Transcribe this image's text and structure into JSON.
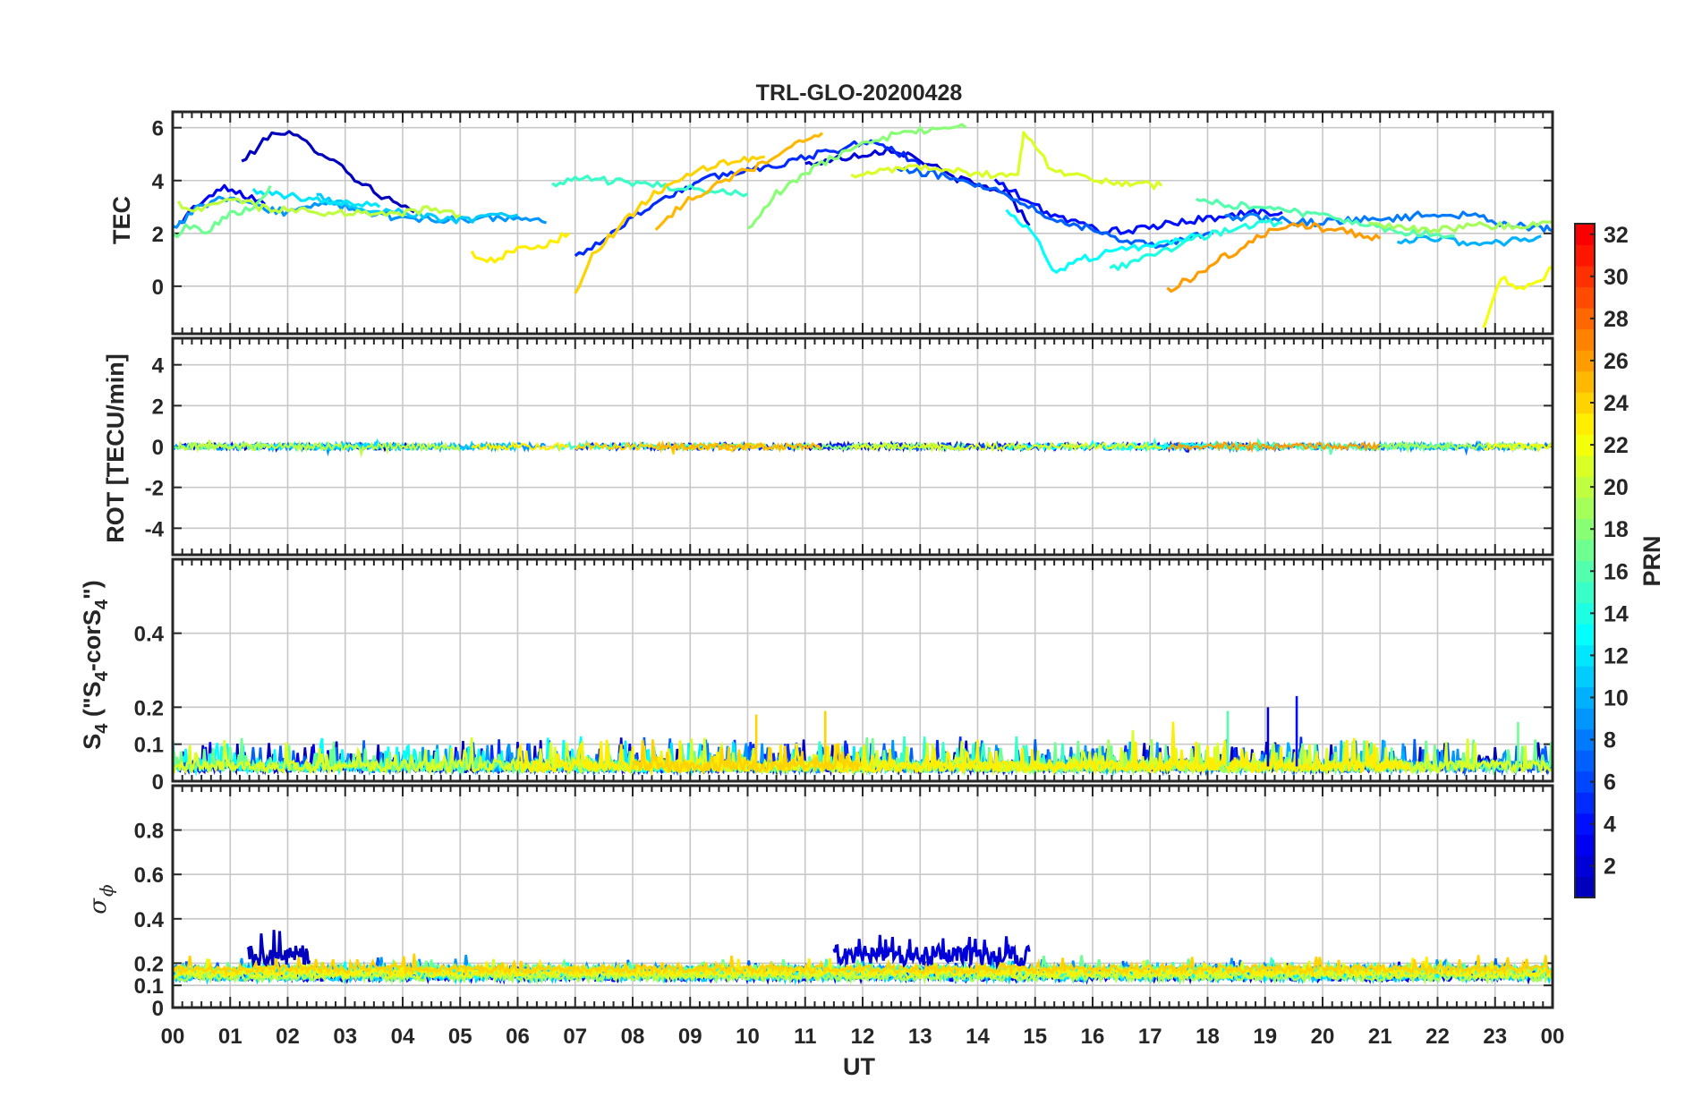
{
  "chart_data": [
    {
      "id": "tec",
      "type": "line",
      "title": "TRL-GLO-20200428",
      "ylabel": "TEC",
      "ylim": [
        -1.8,
        6.6
      ],
      "yticks": [
        0,
        2,
        4,
        6
      ],
      "series": [
        {
          "name": "PRN 1",
          "prn": 1,
          "x": [
            1.2,
            1.5,
            1.8,
            2.1,
            2.4,
            2.8,
            3.1,
            3.5,
            3.9,
            4.2
          ],
          "values": [
            4.7,
            5.3,
            5.9,
            5.7,
            5.3,
            4.8,
            4.2,
            3.6,
            3.1,
            2.8
          ]
        },
        {
          "name": "PRN 2",
          "prn": 2,
          "x": [
            11.0,
            11.5,
            12.0,
            12.5,
            13.0,
            13.5,
            14.0,
            14.5,
            14.9
          ],
          "values": [
            4.6,
            4.8,
            5.0,
            5.2,
            4.8,
            4.2,
            3.8,
            3.6,
            2.3
          ]
        },
        {
          "name": "PRN 3",
          "prn": 3,
          "x": [
            0.1,
            0.5,
            0.9,
            1.3,
            1.6
          ],
          "values": [
            2.4,
            3.2,
            3.7,
            3.4,
            3.1
          ]
        },
        {
          "name": "PRN 4",
          "prn": 4,
          "x": [
            14.3,
            14.8,
            15.2,
            15.7,
            16.2,
            16.7,
            17.2,
            17.7,
            18.2,
            18.8,
            19.3
          ],
          "values": [
            4.0,
            3.3,
            2.8,
            2.4,
            2.1,
            2.1,
            2.3,
            2.5,
            2.6,
            2.8,
            2.8
          ]
        },
        {
          "name": "PRN 5",
          "prn": 5,
          "x": [
            7.0,
            7.5,
            8.0,
            8.5,
            9.0,
            9.5,
            10.0,
            10.5,
            11.0,
            11.5,
            12.0,
            12.5,
            13.0
          ],
          "values": [
            1.1,
            1.8,
            2.6,
            3.3,
            3.8,
            4.2,
            4.4,
            4.6,
            4.9,
            5.1,
            5.5,
            5.2,
            4.6
          ]
        },
        {
          "name": "PRN 7",
          "prn": 7,
          "x": [
            12.6,
            13.1,
            13.6,
            14.1,
            14.6,
            15.1,
            15.6,
            16.1,
            16.6,
            17.1,
            17.6,
            18.1
          ],
          "values": [
            4.4,
            4.3,
            4.1,
            3.8,
            3.4,
            2.8,
            2.4,
            2.1,
            1.7,
            1.6,
            1.8,
            2.0
          ]
        },
        {
          "name": "PRN 8",
          "prn": 8,
          "x": [
            18.3,
            18.8,
            19.3,
            19.8,
            20.3,
            20.8,
            21.3,
            21.8,
            22.3,
            22.8,
            23.3,
            23.8,
            24.0
          ],
          "values": [
            2.6,
            2.6,
            2.5,
            2.4,
            2.5,
            2.5,
            2.6,
            2.7,
            2.7,
            2.6,
            2.3,
            2.2,
            2.1
          ]
        },
        {
          "name": "PRN 9",
          "prn": 9,
          "x": [
            0.0,
            0.4,
            0.8,
            1.2,
            1.6,
            2.0,
            2.4,
            2.8,
            3.2,
            3.6,
            4.0,
            4.5,
            5.0,
            5.5,
            6.0,
            6.5
          ],
          "values": [
            2.2,
            2.9,
            3.3,
            3.2,
            2.9,
            2.8,
            3.0,
            3.1,
            2.9,
            2.7,
            2.6,
            2.5,
            2.5,
            2.6,
            2.5,
            2.4
          ]
        },
        {
          "name": "PRN 10",
          "prn": 10,
          "x": [
            21.3,
            21.8,
            22.3,
            22.8,
            23.3,
            23.8
          ],
          "values": [
            1.6,
            1.8,
            1.7,
            1.6,
            1.7,
            1.9
          ]
        },
        {
          "name": "PRN 11",
          "prn": 11,
          "x": [
            2.5,
            3.0,
            3.5,
            4.0,
            4.5,
            5.0,
            5.5,
            6.0
          ],
          "values": [
            3.4,
            3.1,
            2.9,
            2.8,
            2.6,
            2.5,
            2.6,
            2.7
          ]
        },
        {
          "name": "PRN 12",
          "prn": 12,
          "x": [
            1.4,
            1.8,
            2.3,
            2.8,
            3.3,
            3.6
          ],
          "values": [
            3.6,
            3.5,
            3.3,
            3.2,
            3.1,
            3.0
          ]
        },
        {
          "name": "PRN 13",
          "prn": 13,
          "x": [
            14.5,
            15.0,
            15.3,
            15.8,
            16.3,
            16.8,
            17.3,
            17.8
          ],
          "values": [
            2.8,
            1.9,
            0.5,
            1.0,
            1.3,
            1.5,
            1.7,
            1.9
          ]
        },
        {
          "name": "PRN 14",
          "prn": 14,
          "x": [
            16.3,
            16.8,
            17.3,
            17.8,
            18.3,
            18.8,
            19.3
          ],
          "values": [
            0.6,
            1.0,
            1.4,
            1.8,
            2.1,
            2.3,
            2.4
          ]
        },
        {
          "name": "PRN 15",
          "prn": 15,
          "x": [
            6.6,
            7.0,
            7.5,
            8.0,
            8.5,
            9.0,
            9.5,
            10.0
          ],
          "values": [
            3.8,
            4.1,
            4.0,
            3.9,
            3.8,
            3.7,
            3.6,
            3.5
          ]
        },
        {
          "name": "PRN 16",
          "prn": 16,
          "x": [
            17.8,
            18.3,
            18.8,
            19.3,
            19.8,
            20.3,
            20.8,
            21.3,
            21.8,
            22.3
          ],
          "values": [
            3.2,
            3.1,
            3.0,
            2.9,
            2.7,
            2.5,
            2.3,
            2.1,
            2.0,
            1.9
          ]
        },
        {
          "name": "PRN 17",
          "prn": 17,
          "x": [
            0.0,
            0.3,
            0.6,
            1.0,
            1.4,
            1.7
          ],
          "values": [
            1.9,
            2.3,
            2.1,
            2.7,
            3.0,
            3.8
          ]
        },
        {
          "name": "PRN 18",
          "prn": 18,
          "x": [
            10.0,
            10.5,
            11.0,
            11.5,
            12.0,
            12.5,
            13.0,
            13.5,
            13.8
          ],
          "values": [
            2.1,
            3.5,
            4.3,
            4.9,
            5.4,
            5.7,
            5.9,
            6.0,
            6.0
          ]
        },
        {
          "name": "PRN 19",
          "prn": 19,
          "x": [
            20.8,
            21.3,
            21.8,
            22.3,
            22.8,
            23.3,
            23.8,
            24.0
          ],
          "values": [
            2.3,
            2.2,
            2.1,
            2.2,
            2.3,
            2.3,
            2.4,
            2.4
          ]
        },
        {
          "name": "PRN 20",
          "prn": 20,
          "x": [
            0.1,
            0.5,
            1.0,
            1.5,
            2.0,
            2.5,
            3.0,
            3.5,
            4.0,
            4.5,
            5.0
          ],
          "values": [
            3.1,
            2.9,
            3.4,
            3.0,
            2.9,
            2.8,
            2.8,
            2.7,
            2.8,
            2.9,
            2.7
          ]
        },
        {
          "name": "PRN 21",
          "prn": 21,
          "x": [
            11.8,
            12.3,
            12.8,
            13.3,
            13.8,
            14.3,
            14.7,
            14.8,
            15.3,
            15.8,
            16.3,
            16.8,
            17.2
          ],
          "values": [
            4.1,
            4.4,
            4.5,
            4.4,
            4.3,
            4.2,
            4.1,
            5.8,
            4.4,
            4.1,
            3.9,
            3.9,
            3.8
          ]
        },
        {
          "name": "PRN 22",
          "prn": 22,
          "x": [
            22.8,
            23.1,
            23.5,
            23.8,
            24.0
          ],
          "values": [
            -1.7,
            0.3,
            -0.2,
            0.3,
            0.7
          ]
        },
        {
          "name": "PRN 23",
          "prn": 23,
          "x": [
            5.2,
            5.6,
            6.0,
            6.5,
            6.9
          ],
          "values": [
            1.2,
            1.0,
            1.4,
            1.6,
            2.0
          ]
        },
        {
          "name": "PRN 24",
          "prn": 24,
          "x": [
            7.0,
            7.3,
            7.8,
            8.3,
            8.8,
            9.3,
            9.8,
            10.3
          ],
          "values": [
            -0.4,
            1.2,
            2.3,
            3.4,
            4.0,
            4.5,
            4.8,
            4.9
          ]
        },
        {
          "name": "PRN 25",
          "prn": 25,
          "x": [
            8.4,
            8.9,
            9.4,
            9.9,
            10.4,
            10.9,
            11.3
          ],
          "values": [
            2.0,
            3.2,
            3.8,
            4.3,
            4.8,
            5.4,
            5.8
          ]
        },
        {
          "name": "PRN 26",
          "prn": 26,
          "x": [
            17.3,
            17.7,
            18.1,
            18.5,
            19.0,
            19.5,
            20.0,
            20.5,
            21.0
          ],
          "values": [
            -0.2,
            0.3,
            0.9,
            1.3,
            2.0,
            2.4,
            2.2,
            2.0,
            1.8
          ]
        }
      ]
    },
    {
      "id": "rot",
      "type": "line",
      "ylabel": "ROT [TECU/min]",
      "ylim": [
        -5.3,
        5.3
      ],
      "yticks": [
        -4,
        -2,
        0,
        2,
        4
      ],
      "note": "all PRNs near 0 TECU/min, spread about ±0.2"
    },
    {
      "id": "s4",
      "type": "line",
      "ylabel": "S4 (\"S4-corS4\")",
      "ylabel_parts": {
        "base": "S",
        "sub": "4",
        "mid": " (\"S",
        "sub2": "4",
        "tail": "-corS",
        "sub3": "4",
        "end": "\")"
      },
      "ylim": [
        0,
        0.6
      ],
      "yticks": [
        0,
        0.1,
        0.2,
        0.4
      ],
      "typical_range": [
        0.02,
        0.12
      ],
      "peak_max": 0.23
    },
    {
      "id": "sigphi",
      "type": "line",
      "ylabel": "σϕ",
      "ylabel_parts": {
        "base": "σ",
        "sub": "ϕ"
      },
      "ylim": [
        0,
        1
      ],
      "yticks": [
        0,
        0.1,
        0.2,
        0.4,
        0.6,
        0.8
      ],
      "xlabel": "UT",
      "x_ticklabels": [
        "00",
        "01",
        "02",
        "03",
        "04",
        "05",
        "06",
        "07",
        "08",
        "09",
        "10",
        "11",
        "12",
        "13",
        "14",
        "15",
        "16",
        "17",
        "18",
        "19",
        "20",
        "21",
        "22",
        "23",
        "00"
      ],
      "typical_level": 0.15,
      "elevated_segments": [
        {
          "prn": 1,
          "x_start": 1.3,
          "x_end": 2.4,
          "level": 0.25,
          "max": 0.35
        },
        {
          "prn": 2,
          "x_start": 11.5,
          "x_end": 14.9,
          "level": 0.25,
          "max": 0.33
        }
      ]
    }
  ],
  "colorbar": {
    "label": "PRN",
    "range": [
      1,
      32
    ],
    "ticks": [
      "2",
      "4",
      "6",
      "8",
      "10",
      "12",
      "14",
      "16",
      "18",
      "20",
      "22",
      "24",
      "26",
      "28",
      "30",
      "32"
    ],
    "colormap": "jet"
  }
}
